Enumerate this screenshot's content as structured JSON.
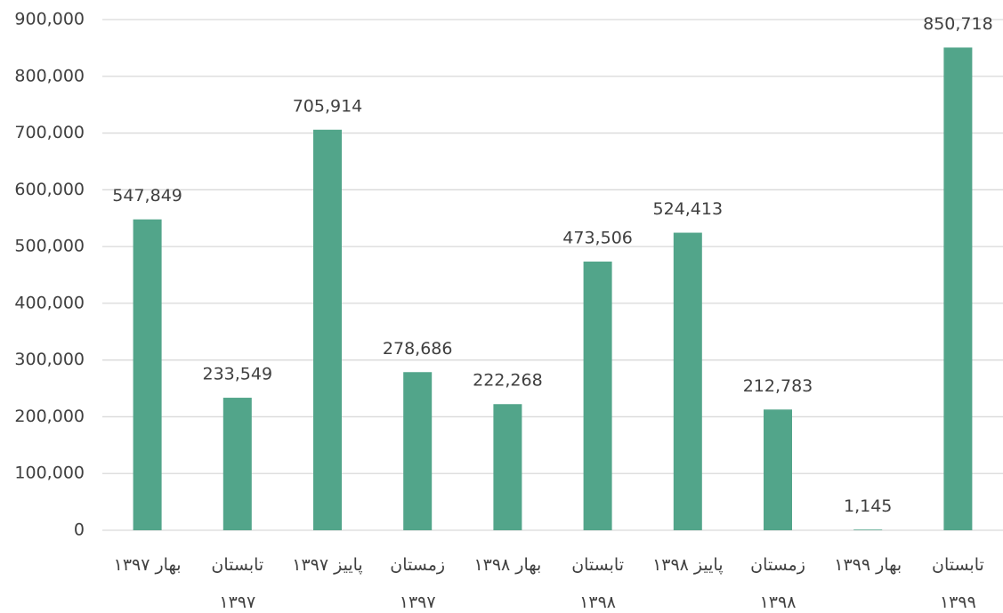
{
  "chart_data": {
    "type": "bar",
    "categories": [
      "بهار ۱۳۹۷",
      "تابستان ۱۳۹۷",
      "پاییز ۱۳۹۷",
      "زمستان ۱۳۹۷",
      "بهار ۱۳۹۸",
      "تابستان ۱۳۹۸",
      "پاییز ۱۳۹۸",
      "زمستان ۱۳۹۸",
      "بهار ۱۳۹۹",
      "تابستان ۱۳۹۹"
    ],
    "values": [
      547849,
      233549,
      705914,
      278686,
      222268,
      473506,
      524413,
      212783,
      1145,
      850718
    ],
    "value_labels": [
      "547,849",
      "233,549",
      "705,914",
      "278,686",
      "222,268",
      "473,506",
      "524,413",
      "212,783",
      "1,145",
      "850,718"
    ],
    "color": "#52a58a",
    "ylim": [
      0,
      900000
    ],
    "yticks": [
      0,
      {
        "value": 100000,
        "label": "100,000"
      },
      {
        "value": 200000,
        "label": "200,000"
      },
      {
        "value": 300000,
        "label": "300,000"
      },
      {
        "value": 400000,
        "label": "400,000"
      },
      {
        "value": 500000,
        "label": "500,000"
      },
      {
        "value": 600000,
        "label": "600,000"
      },
      {
        "value": 700000,
        "label": "700,000"
      },
      {
        "value": 800000,
        "label": "800,000"
      },
      {
        "value": 900000,
        "label": "900,000"
      }
    ],
    "grid": true
  }
}
